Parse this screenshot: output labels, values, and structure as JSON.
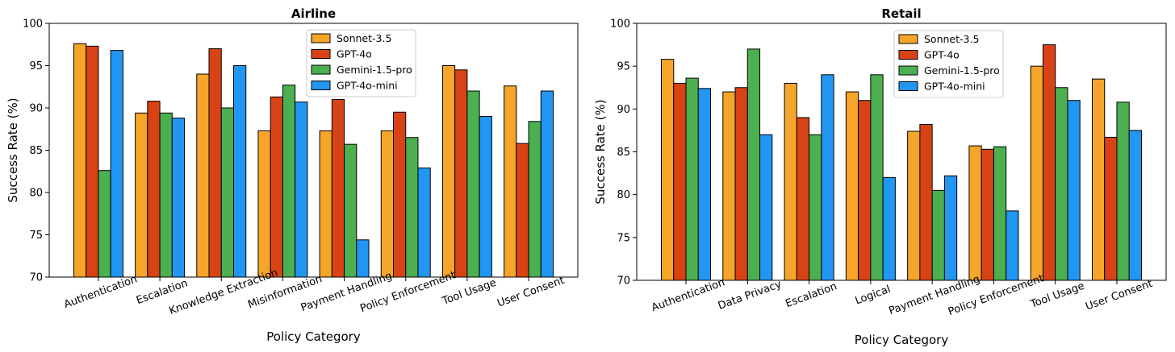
{
  "chart_data": [
    {
      "type": "bar",
      "title": "Airline",
      "xlabel": "Policy Category",
      "ylabel": "Success Rate (%)",
      "ylim": [
        70,
        100
      ],
      "yticks": [
        70,
        75,
        80,
        85,
        90,
        95,
        100
      ],
      "grid": false,
      "legend_position": "top-center",
      "categories": [
        "Authentication",
        "Escalation",
        "Knowledge Extraction",
        "Misinformation",
        "Payment Handling",
        "Policy Enforcement",
        "Tool Usage",
        "User Consent"
      ],
      "series": [
        {
          "name": "Sonnet-3.5",
          "color": "#f5a52a",
          "values": [
            97.6,
            89.4,
            94.0,
            87.3,
            87.3,
            87.3,
            95.0,
            92.6
          ]
        },
        {
          "name": "GPT-4o",
          "color": "#d84315",
          "values": [
            97.3,
            90.8,
            97.0,
            91.3,
            91.0,
            89.5,
            94.5,
            85.8
          ]
        },
        {
          "name": "Gemini-1.5-pro",
          "color": "#4caf50",
          "values": [
            82.6,
            89.4,
            90.0,
            92.7,
            85.7,
            86.5,
            92.0,
            88.4
          ]
        },
        {
          "name": "GPT-4o-mini",
          "color": "#2196f3",
          "values": [
            96.8,
            88.8,
            95.0,
            90.7,
            74.4,
            82.9,
            89.0,
            92.0
          ]
        }
      ]
    },
    {
      "type": "bar",
      "title": "Retail",
      "xlabel": "Policy Category",
      "ylabel": "Success Rate (%)",
      "ylim": [
        70,
        100
      ],
      "yticks": [
        70,
        75,
        80,
        85,
        90,
        95,
        100
      ],
      "grid": false,
      "legend_position": "top-center",
      "categories": [
        "Authentication",
        "Data Privacy",
        "Escalation",
        "Logical",
        "Payment Handling",
        "Policy Enforcement",
        "Tool Usage",
        "User Consent"
      ],
      "series": [
        {
          "name": "Sonnet-3.5",
          "color": "#f5a52a",
          "values": [
            95.8,
            92.0,
            93.0,
            92.0,
            87.4,
            85.7,
            95.0,
            93.5
          ]
        },
        {
          "name": "GPT-4o",
          "color": "#d84315",
          "values": [
            93.0,
            92.5,
            89.0,
            91.0,
            88.2,
            85.3,
            97.5,
            86.7
          ]
        },
        {
          "name": "Gemini-1.5-pro",
          "color": "#4caf50",
          "values": [
            93.6,
            97.0,
            87.0,
            94.0,
            80.5,
            85.6,
            92.5,
            90.8
          ]
        },
        {
          "name": "GPT-4o-mini",
          "color": "#2196f3",
          "values": [
            92.4,
            87.0,
            94.0,
            82.0,
            82.2,
            78.1,
            91.0,
            87.5
          ]
        }
      ]
    }
  ]
}
